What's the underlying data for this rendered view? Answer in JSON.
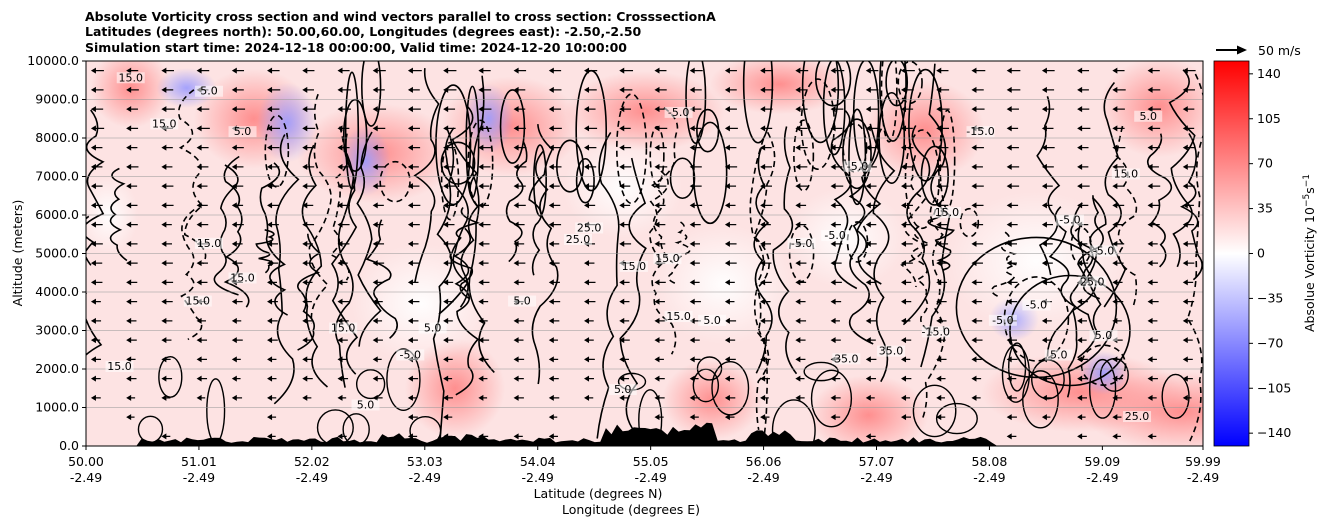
{
  "title": {
    "line1": "Absolute Vorticity cross section and wind vectors parallel to cross section: CrosssectionA",
    "line2": "Latitudes (degrees north): 50.00,60.00, Longitudes (degrees east): -2.50,-2.50",
    "line3": "Simulation start time: 2024-12-18 00:00:00, Valid time: 2024-12-20 10:00:00"
  },
  "chart_data": {
    "type": "heatmap",
    "xlabel_line1": "Latitude (degrees N)",
    "xlabel_line2": "Longitude (degrees E)",
    "ylabel": "Altitude (meters)",
    "ylim": [
      0,
      10000
    ],
    "xlim": [
      50.0,
      59.99
    ],
    "y_ticks": [
      0,
      1000,
      2000,
      3000,
      4000,
      5000,
      6000,
      7000,
      8000,
      9000,
      10000
    ],
    "y_tick_labels": [
      "0.0",
      "1000.0",
      "2000.0",
      "3000.0",
      "4000.0",
      "5000.0",
      "6000.0",
      "7000.0",
      "8000.0",
      "9000.0",
      "10000.0"
    ],
    "x_ticks": [
      {
        "lat": 50.0,
        "lat_label": "50.00",
        "lon_label": "-2.49"
      },
      {
        "lat": 51.01,
        "lat_label": "51.01",
        "lon_label": "-2.49"
      },
      {
        "lat": 52.02,
        "lat_label": "52.02",
        "lon_label": "-2.49"
      },
      {
        "lat": 53.03,
        "lat_label": "53.03",
        "lon_label": "-2.49"
      },
      {
        "lat": 54.04,
        "lat_label": "54.04",
        "lon_label": "-2.49"
      },
      {
        "lat": 55.05,
        "lat_label": "55.05",
        "lon_label": "-2.49"
      },
      {
        "lat": 56.06,
        "lat_label": "56.06",
        "lon_label": "-2.49"
      },
      {
        "lat": 57.07,
        "lat_label": "57.07",
        "lon_label": "-2.49"
      },
      {
        "lat": 58.08,
        "lat_label": "58.08",
        "lon_label": "-2.49"
      },
      {
        "lat": 59.09,
        "lat_label": "59.09",
        "lon_label": "-2.49"
      },
      {
        "lat": 59.99,
        "lat_label": "59.99",
        "lon_label": "-2.49"
      }
    ],
    "grid": "horizontal",
    "colorbar": {
      "label": "Absolue Vorticity 10$^{-5}$s$^{-1}$",
      "label_text": "Absolue Vorticity 10",
      "label_sup": "−5",
      "label_unit": "s",
      "range": [
        -150,
        150
      ],
      "ticks": [
        -140,
        -105,
        -70,
        -35,
        0,
        35,
        70,
        105,
        140
      ],
      "tick_labels": [
        "−140",
        "−105",
        "−70",
        "−35",
        "0",
        "35",
        "70",
        "105",
        "140"
      ],
      "colormap": "bwr",
      "colors": {
        "neg": "#0000ff",
        "zero": "#ffffff",
        "pos": "#ff0000"
      }
    },
    "quiver_key": {
      "label": "50 m/s",
      "speed": 50
    },
    "contour_labels": [
      {
        "lat": 50.4,
        "alt": 9500,
        "text": "15.0"
      },
      {
        "lat": 51.1,
        "alt": 9150,
        "text": "5.0"
      },
      {
        "lat": 50.7,
        "alt": 8300,
        "text": "15.0"
      },
      {
        "lat": 51.4,
        "alt": 8100,
        "text": "5.0"
      },
      {
        "lat": 51.1,
        "alt": 5200,
        "text": "15.0"
      },
      {
        "lat": 51.4,
        "alt": 4300,
        "text": "15.0"
      },
      {
        "lat": 51.0,
        "alt": 3700,
        "text": "15.0"
      },
      {
        "lat": 52.3,
        "alt": 3000,
        "text": "15.0"
      },
      {
        "lat": 53.1,
        "alt": 3000,
        "text": "5.0"
      },
      {
        "lat": 52.9,
        "alt": 2300,
        "text": "-5.0"
      },
      {
        "lat": 53.9,
        "alt": 3700,
        "text": "5.0"
      },
      {
        "lat": 54.5,
        "alt": 5600,
        "text": "25.0"
      },
      {
        "lat": 54.4,
        "alt": 5300,
        "text": "25.0"
      },
      {
        "lat": 54.9,
        "alt": 4600,
        "text": "15.0"
      },
      {
        "lat": 55.2,
        "alt": 4800,
        "text": "15.0"
      },
      {
        "lat": 55.6,
        "alt": 3200,
        "text": "5.0"
      },
      {
        "lat": 55.3,
        "alt": 8600,
        "text": "-5.0"
      },
      {
        "lat": 56.9,
        "alt": 7200,
        "text": "-5.0"
      },
      {
        "lat": 56.4,
        "alt": 5200,
        "text": "-5.0"
      },
      {
        "lat": 56.7,
        "alt": 5400,
        "text": "-5.0"
      },
      {
        "lat": 57.7,
        "alt": 6000,
        "text": "15.0"
      },
      {
        "lat": 58.0,
        "alt": 8100,
        "text": "-15.0"
      },
      {
        "lat": 59.3,
        "alt": 7000,
        "text": "15.0"
      },
      {
        "lat": 59.5,
        "alt": 8500,
        "text": "5.0"
      },
      {
        "lat": 58.8,
        "alt": 5800,
        "text": "-5.0"
      },
      {
        "lat": 59.1,
        "alt": 5000,
        "text": "-5.0"
      },
      {
        "lat": 59.0,
        "alt": 4200,
        "text": "25.0"
      },
      {
        "lat": 58.5,
        "alt": 3600,
        "text": "-5.0"
      },
      {
        "lat": 58.2,
        "alt": 3200,
        "text": "-5.0"
      },
      {
        "lat": 57.6,
        "alt": 2900,
        "text": "-15.0"
      },
      {
        "lat": 58.7,
        "alt": 2300,
        "text": "5.0"
      },
      {
        "lat": 59.1,
        "alt": 2800,
        "text": "5.0"
      },
      {
        "lat": 56.8,
        "alt": 2200,
        "text": "35.0"
      },
      {
        "lat": 57.2,
        "alt": 2400,
        "text": "35.0"
      },
      {
        "lat": 59.4,
        "alt": 700,
        "text": "25.0"
      },
      {
        "lat": 55.3,
        "alt": 3300,
        "text": "15.0"
      },
      {
        "lat": 54.8,
        "alt": 1400,
        "text": "5.0"
      },
      {
        "lat": 52.5,
        "alt": 1000,
        "text": "5.0"
      },
      {
        "lat": 50.3,
        "alt": 2000,
        "text": "15.0"
      }
    ],
    "orography_alt_max": 650
  }
}
